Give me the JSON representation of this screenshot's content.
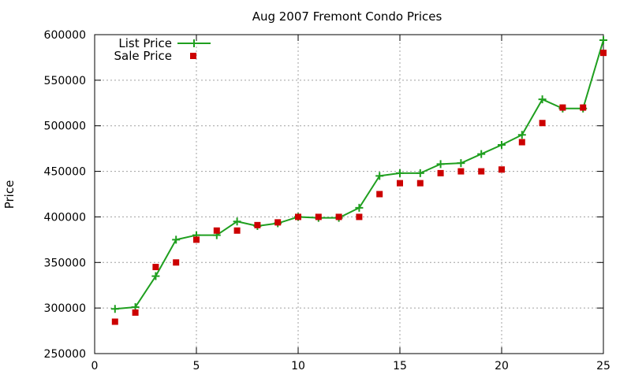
{
  "chart_data": {
    "type": "line",
    "title": "Aug 2007 Fremont Condo Prices",
    "xlabel": "",
    "ylabel": "Price",
    "xlim": [
      0,
      25
    ],
    "ylim": [
      250000,
      600000
    ],
    "xticks": [
      0,
      5,
      10,
      15,
      20,
      25
    ],
    "yticks": [
      250000,
      300000,
      350000,
      400000,
      450000,
      500000,
      550000,
      600000
    ],
    "grid": true,
    "legend_position": "top-left",
    "series": [
      {
        "name": "List Price",
        "style": "line-with-plus-markers",
        "color": "#1f9f1f",
        "x": [
          1,
          2,
          3,
          4,
          5,
          6,
          7,
          8,
          9,
          10,
          11,
          12,
          13,
          14,
          15,
          16,
          17,
          18,
          19,
          20,
          21,
          22,
          23,
          24,
          25
        ],
        "values": [
          299000,
          301000,
          335000,
          375000,
          380000,
          380000,
          395000,
          390000,
          393000,
          400000,
          399000,
          399000,
          410000,
          445000,
          448000,
          448000,
          458000,
          459000,
          469000,
          479000,
          490000,
          529000,
          519000,
          519000,
          594000
        ]
      },
      {
        "name": "Sale Price",
        "style": "square-markers",
        "color": "#cc0000",
        "x": [
          1,
          2,
          3,
          4,
          5,
          6,
          7,
          8,
          9,
          10,
          11,
          12,
          13,
          14,
          15,
          16,
          17,
          18,
          19,
          20,
          21,
          22,
          23,
          24,
          25
        ],
        "values": [
          285000,
          295000,
          345000,
          350000,
          375000,
          385000,
          385000,
          391000,
          394000,
          400000,
          400000,
          400000,
          400000,
          425000,
          437000,
          437000,
          448000,
          450000,
          450000,
          452000,
          482000,
          503000,
          520000,
          520000,
          580000
        ]
      }
    ]
  }
}
